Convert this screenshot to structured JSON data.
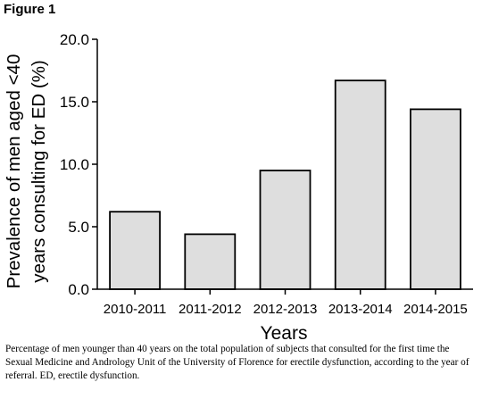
{
  "figure_label": "Figure 1",
  "caption": "Percentage of men younger than 40 years on the total population of subjects that consulted for the first time the Sexual Medicine and Andrology Unit of the University of Florence for erectile dysfunction, according to the year of referral. ED, erectile dysfunction.",
  "chart_data": {
    "type": "bar",
    "categories": [
      "2010-2011",
      "2011-2012",
      "2012-2013",
      "2013-2014",
      "2014-2015"
    ],
    "values": [
      6.2,
      4.4,
      9.5,
      16.7,
      14.4
    ],
    "xlabel": "Years",
    "ylabel": "Prevalence of men aged <40 years consulting for ED (%)",
    "ylabel_lines": [
      "Prevalence of men aged <40",
      "years consulting for ED (%)"
    ],
    "ylim": [
      0,
      20
    ],
    "yticks": [
      "0.0",
      "5.0",
      "10.0",
      "15.0",
      "20.0"
    ],
    "bar_fill": "#dedede",
    "bar_stroke": "#000000",
    "grid": false
  }
}
